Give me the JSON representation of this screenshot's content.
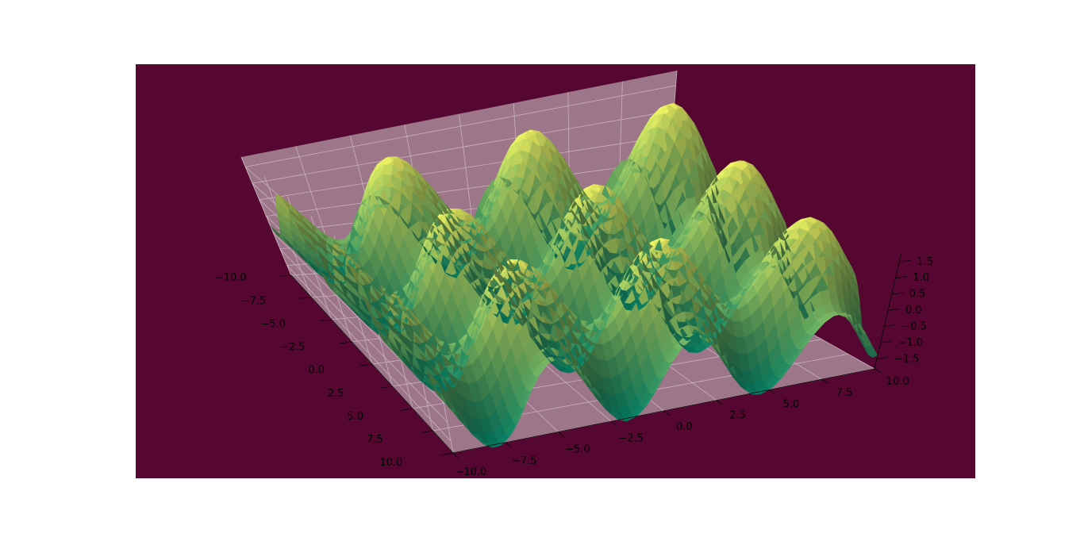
{
  "colors": {
    "figure_bg": "#ffffff",
    "axes_bg": "#560731",
    "pane": "#9d7689",
    "grid": "#c9b3bf",
    "colormap": "summer"
  },
  "chart_data": {
    "type": "surface3d",
    "title": "",
    "xlabel": "",
    "ylabel": "",
    "zlabel": "",
    "function": "sin(x) + cos(y)",
    "x_range": [
      -10,
      10
    ],
    "y_range": [
      -10,
      10
    ],
    "z_range": [
      -1.8,
      1.8
    ],
    "grid": true,
    "x_ticks": [
      -10.0,
      -7.5,
      -5.0,
      -2.5,
      0.0,
      2.5,
      5.0,
      7.5,
      10.0
    ],
    "x_tick_labels": [
      "−10.0",
      "−7.5",
      "−5.0",
      "−2.5",
      "0.0",
      "2.5",
      "5.0",
      "7.5",
      "10.0"
    ],
    "y_ticks": [
      -10.0,
      -7.5,
      -5.0,
      -2.5,
      0.0,
      2.5,
      5.0,
      7.5,
      10.0
    ],
    "y_tick_labels": [
      "−10.0",
      "−7.5",
      "−5.0",
      "−2.5",
      "0.0",
      "2.5",
      "5.0",
      "7.5",
      "10.0"
    ],
    "z_ticks": [
      -1.5,
      -1.0,
      -0.5,
      0.0,
      0.5,
      1.0,
      1.5
    ],
    "z_tick_labels": [
      "−1.5",
      "−1.0",
      "−0.5",
      "0.0",
      "0.5",
      "1.0",
      "1.5"
    ]
  }
}
